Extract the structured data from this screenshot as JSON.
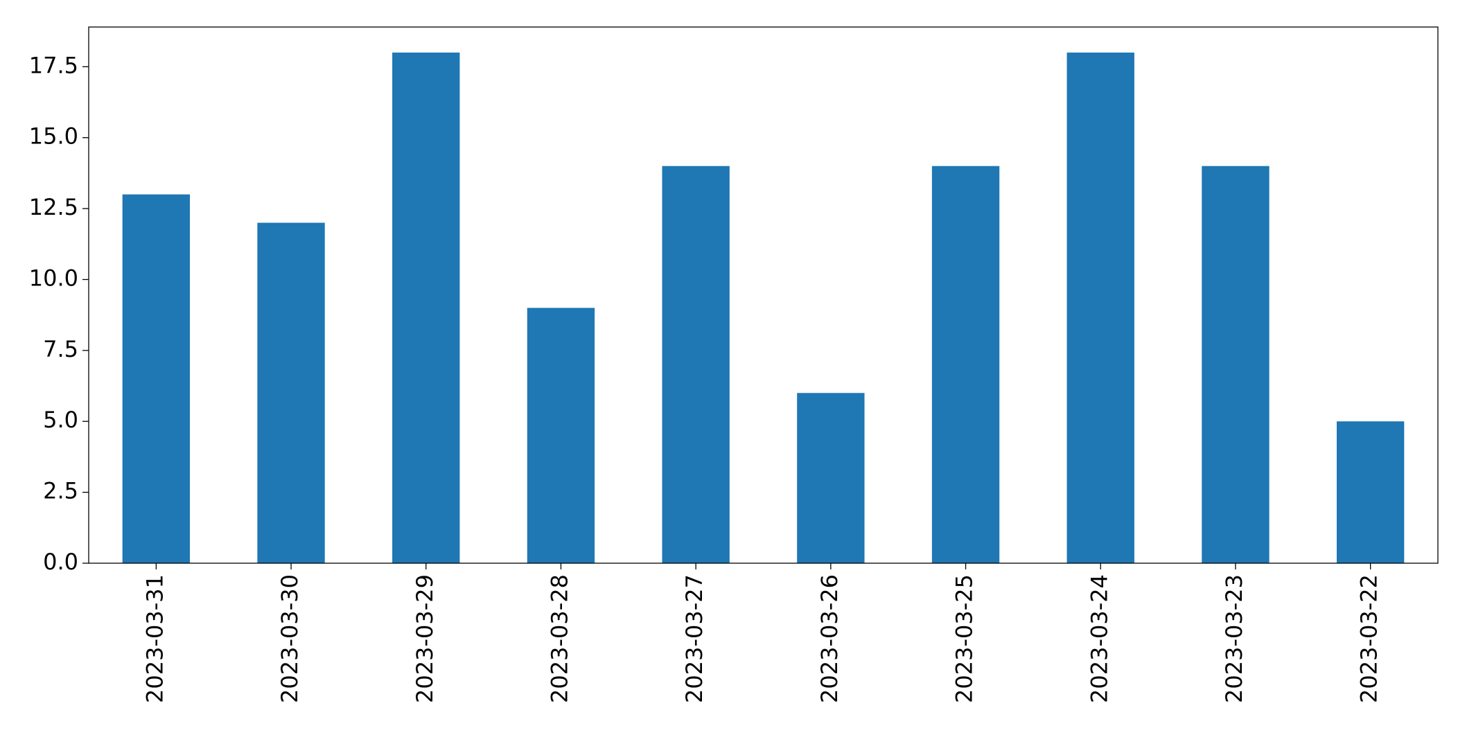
{
  "chart_data": {
    "type": "bar",
    "categories": [
      "2023-03-31",
      "2023-03-30",
      "2023-03-29",
      "2023-03-28",
      "2023-03-27",
      "2023-03-26",
      "2023-03-25",
      "2023-03-24",
      "2023-03-23",
      "2023-03-22"
    ],
    "values": [
      13,
      12,
      18,
      9,
      14,
      6,
      14,
      18,
      14,
      5
    ],
    "color": "#1f77b4",
    "ylim": [
      0,
      18.9
    ],
    "yticks": [
      {
        "value": 0,
        "label": "0.0"
      },
      2.5,
      {
        "value": 5,
        "label": "5.0"
      },
      7.5,
      {
        "value": 10,
        "label": "10.0"
      },
      12.5,
      {
        "value": 15,
        "label": "15.0"
      },
      17.5
    ],
    "grid": false
  }
}
